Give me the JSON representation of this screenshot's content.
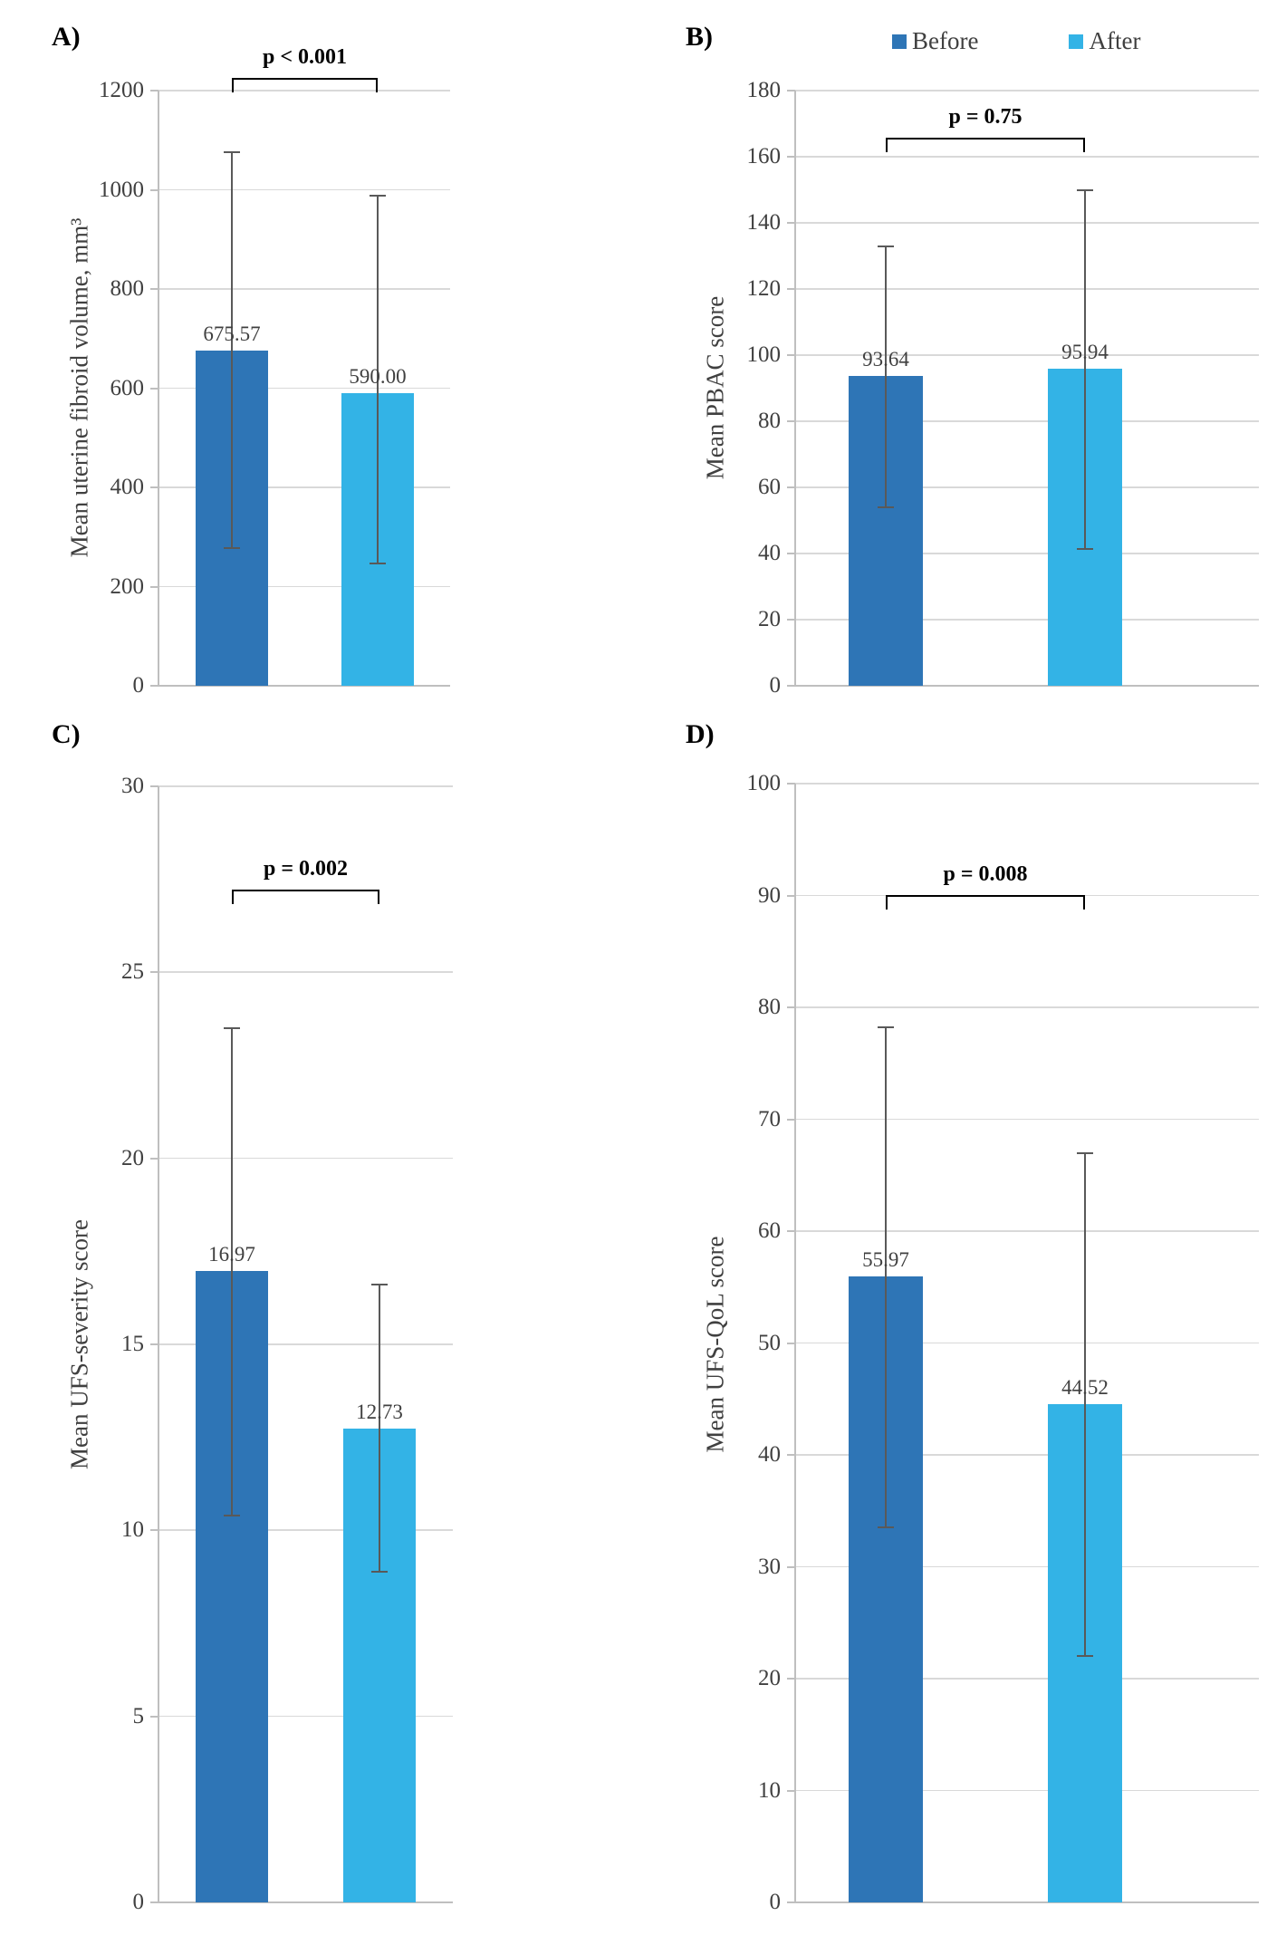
{
  "figure": {
    "background": "#FFFFFF",
    "legend": {
      "before": "Before",
      "after": "After",
      "position": "top-right"
    },
    "colors": {
      "before_bar": "#2E75B6",
      "after_bar": "#33B3E6",
      "error_bar": "#595959",
      "gridline": "#D9D9D9",
      "axis_line": "#BFBFBF",
      "tick_text": "#404040",
      "bracket": "#000000"
    }
  },
  "chart_data": [
    {
      "type": "bar",
      "panel_label": "A)",
      "ylabel": "Mean uterine fibroid volume, mm³",
      "ylim": [
        0,
        1200
      ],
      "yticks": [
        0,
        200,
        400,
        600,
        800,
        1000,
        1200
      ],
      "grid": true,
      "categories": [
        "Before",
        "After"
      ],
      "values": [
        675.57,
        590.0
      ],
      "value_labels": [
        "675.57",
        "590.00"
      ],
      "error_low": [
        277,
        246
      ],
      "error_high": [
        1075,
        988
      ],
      "p_label": "p < 0.001"
    },
    {
      "type": "bar",
      "panel_label": "B)",
      "ylabel": "Mean PBAC score",
      "ylim": [
        0,
        180
      ],
      "yticks": [
        0,
        20,
        40,
        60,
        80,
        100,
        120,
        140,
        160,
        180
      ],
      "grid": true,
      "categories": [
        "Before",
        "After"
      ],
      "values": [
        93.64,
        95.94
      ],
      "value_labels": [
        "93.64",
        "95.94"
      ],
      "error_low": [
        54,
        41.5
      ],
      "error_high": [
        133,
        150
      ],
      "p_label": "p = 0.75"
    },
    {
      "type": "bar",
      "panel_label": "C)",
      "ylabel": "Mean UFS-severity score",
      "ylim": [
        0,
        30
      ],
      "yticks": [
        0,
        5,
        10,
        15,
        20,
        25,
        30
      ],
      "grid": true,
      "categories": [
        "Before",
        "After"
      ],
      "values": [
        16.97,
        12.73
      ],
      "value_labels": [
        "16.97",
        "12.73"
      ],
      "error_low": [
        10.4,
        8.9
      ],
      "error_high": [
        23.5,
        16.6
      ],
      "p_label": "p = 0.002"
    },
    {
      "type": "bar",
      "panel_label": "D)",
      "ylabel": "Mean UFS-QoL score",
      "ylim": [
        0,
        100
      ],
      "yticks": [
        0,
        10,
        20,
        30,
        40,
        50,
        60,
        70,
        80,
        90,
        100
      ],
      "grid": true,
      "categories": [
        "Before",
        "After"
      ],
      "values": [
        55.97,
        44.52
      ],
      "value_labels": [
        "55.97",
        "44.52"
      ],
      "error_low": [
        33.5,
        22
      ],
      "error_high": [
        78.2,
        67
      ],
      "p_label": "p = 0.008"
    }
  ]
}
